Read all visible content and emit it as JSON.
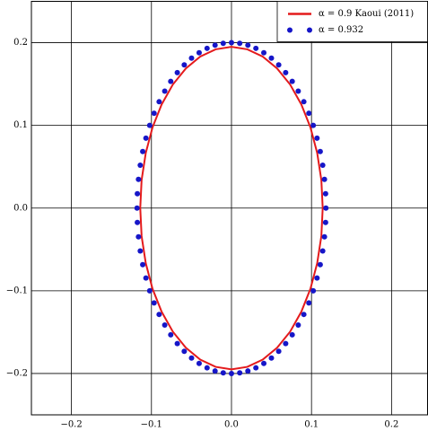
{
  "chart_data": {
    "type": "line",
    "xlim": [
      -0.25,
      0.245
    ],
    "ylim": [
      -0.25,
      0.25
    ],
    "xticks": [
      {
        "value": -0.2,
        "label": "−0.2"
      },
      {
        "value": -0.1,
        "label": "−0.1"
      },
      {
        "value": 0.0,
        "label": "0.0"
      },
      0.1,
      0.2
    ],
    "yticks": [
      {
        "value": -0.2,
        "label": "−0.2"
      },
      {
        "value": -0.1,
        "label": "−0.1"
      },
      {
        "value": 0.0,
        "label": "0.0"
      },
      0.1,
      0.2
    ],
    "grid": true,
    "legend": "upper right",
    "series": [
      {
        "name": "α = 0.9 Kaoui (2011)",
        "type": "line",
        "color": "#e41a1c",
        "x": [
          0.114,
          0.1123,
          0.1071,
          0.0987,
          0.0873,
          0.0733,
          0.057,
          0.039,
          0.0198,
          0,
          -0.0198,
          -0.039,
          -0.057,
          -0.0733,
          -0.0873,
          -0.0987,
          -0.1071,
          -0.1123,
          -0.114,
          -0.1123,
          -0.1071,
          -0.0987,
          -0.0873,
          -0.0733,
          -0.057,
          -0.039,
          -0.0198,
          0,
          0.0198,
          0.039,
          0.057,
          0.0733,
          0.0873,
          0.0987,
          0.1071,
          0.1123,
          0.114
        ],
        "values": [
          0,
          0.0339,
          0.0667,
          0.0975,
          0.1253,
          0.1494,
          0.1689,
          0.1832,
          0.192,
          0.195,
          0.192,
          0.1832,
          0.1689,
          0.1494,
          0.1253,
          0.0975,
          0.0667,
          0.0339,
          0,
          -0.0339,
          -0.0667,
          -0.0975,
          -0.1253,
          -0.1494,
          -0.1689,
          -0.1832,
          -0.192,
          -0.195,
          -0.192,
          -0.1832,
          -0.1689,
          -0.1494,
          -0.1253,
          -0.0975,
          -0.0667,
          -0.0339,
          0
        ]
      },
      {
        "name": "α = 0.932",
        "type": "scatter",
        "color": "#1616c8",
        "x": [
          0.118,
          0.1176,
          0.1162,
          0.114,
          0.1109,
          0.1069,
          0.1022,
          0.0967,
          0.0904,
          0.0834,
          0.0759,
          0.0677,
          0.059,
          0.0499,
          0.0404,
          0.0305,
          0.0205,
          0.0103,
          0,
          -0.0103,
          -0.0205,
          -0.0305,
          -0.0404,
          -0.0499,
          -0.059,
          -0.0677,
          -0.0759,
          -0.0834,
          -0.0904,
          -0.0967,
          -0.1022,
          -0.1069,
          -0.1109,
          -0.114,
          -0.1162,
          -0.1176,
          -0.118,
          -0.1176,
          -0.1162,
          -0.114,
          -0.1109,
          -0.1069,
          -0.1022,
          -0.0967,
          -0.0904,
          -0.0834,
          -0.0759,
          -0.0677,
          -0.059,
          -0.0499,
          -0.0404,
          -0.0305,
          -0.0205,
          -0.0103,
          0,
          0.0103,
          0.0205,
          0.0305,
          0.0404,
          0.0499,
          0.059,
          0.0677,
          0.0759,
          0.0834,
          0.0904,
          0.0967,
          0.1022,
          0.1069,
          0.1109,
          0.114,
          0.1162,
          0.1176
        ],
        "values": [
          0,
          0.0174,
          0.0347,
          0.0518,
          0.0684,
          0.0845,
          0.1,
          0.1147,
          0.1286,
          0.1414,
          0.1532,
          0.1638,
          0.1732,
          0.1813,
          0.1879,
          0.1932,
          0.197,
          0.1992,
          0.2,
          0.1992,
          0.197,
          0.1932,
          0.1879,
          0.1813,
          0.1732,
          0.1638,
          0.1532,
          0.1414,
          0.1286,
          0.1147,
          0.1,
          0.0845,
          0.0684,
          0.0518,
          0.0347,
          0.0174,
          0,
          -0.0174,
          -0.0347,
          -0.0518,
          -0.0684,
          -0.0845,
          -0.1,
          -0.1147,
          -0.1286,
          -0.1414,
          -0.1532,
          -0.1638,
          -0.1732,
          -0.1813,
          -0.1879,
          -0.1932,
          -0.197,
          -0.1992,
          -0.2,
          -0.1992,
          -0.197,
          -0.1932,
          -0.1879,
          -0.1813,
          -0.1732,
          -0.1638,
          -0.1532,
          -0.1414,
          -0.1286,
          -0.1147,
          -0.1,
          -0.0845,
          -0.0684,
          -0.0518,
          -0.0347,
          -0.0174
        ]
      }
    ]
  }
}
